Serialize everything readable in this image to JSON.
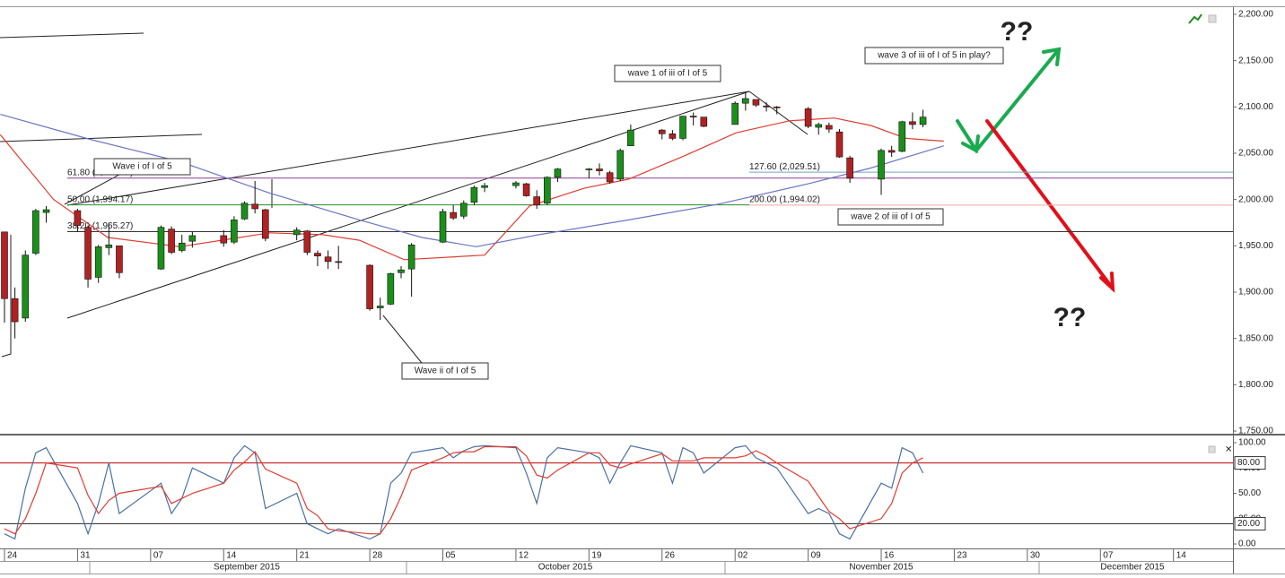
{
  "chart_data": [
    {
      "type": "candlestick",
      "x": [
        0,
        1,
        2,
        3,
        4,
        7,
        8,
        9,
        10,
        11,
        15,
        16,
        17,
        18,
        21,
        22,
        23,
        24,
        25,
        28,
        29,
        30,
        31,
        32,
        35,
        36,
        37,
        38,
        39,
        42,
        43,
        44,
        45,
        46,
        49,
        50,
        51,
        52,
        53,
        56,
        57,
        58,
        59,
        60,
        63,
        64,
        65,
        66,
        67,
        70,
        71,
        72,
        73,
        74,
        77,
        78,
        79,
        80,
        81,
        84,
        85,
        86,
        87,
        88
      ],
      "open": [
        1965,
        1893,
        1872,
        1942,
        1986,
        1988,
        1970,
        1916,
        1948,
        1950,
        1925,
        1968,
        1945,
        1955,
        1961,
        1954,
        1979,
        1995,
        1989,
        1962,
        1966,
        1942,
        1938,
        1933,
        1929,
        1883,
        1887,
        1921,
        1925,
        1954,
        1986,
        1982,
        1997,
        2013,
        2015,
        2017,
        2003,
        1996,
        2024,
        2032,
        2033,
        2029,
        2022,
        2058,
        2075,
        2071,
        2066,
        2090,
        2089,
        2081,
        2104,
        2108,
        2101,
        2100,
        2098,
        2078,
        2080,
        2073,
        2045,
        2022,
        2053,
        2052,
        2084,
        2081
      ],
      "high": [
        1965,
        1905,
        1945,
        1990,
        1993,
        1990,
        1972,
        1951,
        1975,
        1950,
        1972,
        1971,
        1962,
        1965,
        1967,
        1982,
        1998,
        2020,
        1990,
        1970,
        1967,
        1945,
        1945,
        1950,
        1930,
        1894,
        1921,
        1928,
        1953,
        1990,
        1994,
        1999,
        2015,
        2018,
        2020,
        2018,
        2010,
        2025,
        2034,
        2034,
        2039,
        2031,
        2055,
        2081,
        2076,
        2075,
        2090,
        2094,
        2086,
        2106,
        2116,
        2107,
        2105,
        2101,
        2100,
        2083,
        2083,
        2076,
        2047,
        2055,
        2058,
        2085,
        2094,
        2097
      ],
      "low": [
        1867,
        1850,
        1868,
        1940,
        1975,
        1965,
        1905,
        1910,
        1940,
        1915,
        1924,
        1941,
        1943,
        1948,
        1949,
        1952,
        1978,
        1985,
        1955,
        1956,
        1940,
        1928,
        1925,
        1925,
        1880,
        1870,
        1886,
        1915,
        1895,
        1953,
        1978,
        1979,
        1994,
        2008,
        2012,
        2003,
        1990,
        1994,
        2019,
        2023,
        2026,
        2017,
        2020,
        2058,
        2065,
        2064,
        2064,
        2080,
        2078,
        2081,
        2096,
        2100,
        2095,
        2092,
        2077,
        2070,
        2072,
        2045,
        2018,
        2005,
        2046,
        2051,
        2076,
        2078
      ],
      "close": [
        1893,
        1868,
        1940,
        1988,
        1989,
        1972,
        1914,
        1949,
        1951,
        1921,
        1970,
        1943,
        1953,
        1961,
        1953,
        1978,
        1996,
        1990,
        1958,
        1967,
        1943,
        1939,
        1933,
        1932,
        1882,
        1885,
        1920,
        1924,
        1951,
        1987,
        1980,
        1996,
        2013,
        2015,
        2018,
        2004,
        1994,
        2024,
        2033,
        2033,
        2031,
        2019,
        2053,
        2075,
        2071,
        2066,
        2090,
        2089,
        2079,
        2104,
        2109,
        2102,
        2100,
        2099,
        2079,
        2081,
        2076,
        2046,
        2023,
        2053,
        2051,
        2084,
        2081,
        2089
      ],
      "up_color": "#1a8f1a",
      "down_color": "#b22222",
      "series": [
        {
          "color": "#e03c31",
          "x": [
            -0.4,
            4.7,
            9.9,
            16.8,
            25.4,
            30.5,
            34,
            38.3,
            46,
            50.3,
            55.5,
            59.8,
            64.9,
            70.1,
            75.2,
            79.5,
            83,
            86.4,
            90
          ],
          "values": [
            2070,
            2000,
            1959,
            1949,
            1964,
            1962,
            1956,
            1935,
            1940,
            1993,
            2012,
            2022,
            2046,
            2072,
            2085,
            2088,
            2080,
            2066,
            2063
          ]
        },
        {
          "color": "#6b74c4",
          "x": [
            -0.4,
            8.2,
            16.8,
            25.4,
            34,
            40,
            45.2,
            51.2,
            59.8,
            68.4,
            77,
            83,
            90
          ],
          "values": [
            2092,
            2065,
            2041,
            2007,
            1978,
            1959,
            1949,
            1962,
            1978,
            1995,
            2017,
            2034,
            2058
          ]
        }
      ],
      "levels": [
        {
          "value": 2023.08,
          "label": "61.80 (2,023.08)",
          "color": "#8b3a96"
        },
        {
          "value": 1994.17,
          "label": "50.00 (1,994.17)",
          "color": "#2a8a2a"
        },
        {
          "value": 1965.27,
          "label": "38.20 (1,965.27)",
          "color": "#333333"
        },
        {
          "value": 2029.51,
          "label": "127.60 (2,029.51)",
          "color": "#6fa8c0"
        },
        {
          "value": 1994.02,
          "label": "200.00 (1,994.02)",
          "color": "#f0a8a8"
        }
      ],
      "annotations": [
        "Wave i of I of 5",
        "wave 1 of iii of I of 5",
        "wave 3 of iii of I of 5 in play?",
        "wave 2 of iii of I of 5",
        "Wave ii of I of 5"
      ],
      "question_marks": [
        "??",
        "??"
      ],
      "xlim": [
        -0.43,
        117.7
      ],
      "xticks": [
        {
          "value": 0,
          "label": "24"
        },
        {
          "value": 7,
          "label": "31"
        },
        {
          "value": 14,
          "label": "07"
        },
        {
          "value": 21,
          "label": "14"
        },
        {
          "value": 28,
          "label": "21"
        },
        {
          "value": 35,
          "label": "28"
        },
        {
          "value": 42,
          "label": "05"
        },
        {
          "value": 49,
          "label": "12"
        },
        {
          "value": 56,
          "label": "19"
        },
        {
          "value": 63,
          "label": "26"
        },
        {
          "value": 70,
          "label": "02"
        },
        {
          "value": 77,
          "label": "09"
        },
        {
          "value": 84,
          "label": "16"
        },
        {
          "value": 91,
          "label": "23"
        },
        {
          "value": 98,
          "label": "30"
        },
        {
          "value": 105,
          "label": "07"
        },
        {
          "value": 112,
          "label": "14"
        }
      ],
      "month_labels": [
        "September 2015",
        "October 2015",
        "November 2015",
        "December 2015"
      ],
      "ylim": [
        1747.1,
        2207.7
      ],
      "yticks": [
        {
          "value": 1750,
          "label": "1,750.00"
        },
        {
          "value": 1800,
          "label": "1,800.00"
        },
        {
          "value": 1850,
          "label": "1,850.00"
        },
        {
          "value": 1900,
          "label": "1,900.00"
        },
        {
          "value": 1950,
          "label": "1,950.00"
        },
        {
          "value": 2000,
          "label": "2,000.00"
        },
        {
          "value": 2050,
          "label": "2,050.00"
        },
        {
          "value": 2100,
          "label": "2,100.00"
        },
        {
          "value": 2150,
          "label": "2,150.00"
        },
        {
          "value": 2200,
          "label": "2,200.00"
        }
      ]
    },
    {
      "type": "line",
      "x": [
        0,
        1,
        2,
        3,
        4,
        7,
        8,
        9,
        10,
        11,
        15,
        16,
        17,
        18,
        21,
        22,
        23,
        24,
        25,
        28,
        29,
        30,
        31,
        32,
        35,
        36,
        37,
        38,
        39,
        42,
        43,
        44,
        45,
        46,
        49,
        50,
        51,
        52,
        53,
        56,
        57,
        58,
        59,
        60,
        63,
        64,
        65,
        66,
        67,
        70,
        71,
        72,
        73,
        74,
        77,
        78,
        79,
        80,
        81,
        84,
        85,
        86,
        87,
        88
      ],
      "series": [
        {
          "color": "#4a6fa5",
          "values": [
            10,
            5,
            55,
            90,
            95,
            40,
            10,
            40,
            80,
            30,
            60,
            30,
            45,
            75,
            60,
            85,
            97,
            90,
            35,
            50,
            20,
            15,
            10,
            15,
            5,
            10,
            60,
            70,
            90,
            95,
            85,
            92,
            96,
            97,
            95,
            70,
            40,
            85,
            95,
            90,
            85,
            60,
            80,
            97,
            90,
            60,
            95,
            90,
            70,
            95,
            97,
            85,
            80,
            75,
            30,
            35,
            30,
            10,
            5,
            60,
            55,
            95,
            90,
            70
          ]
        },
        {
          "color": "#e03c31",
          "values": [
            15,
            10,
            25,
            50,
            80,
            75,
            48,
            30,
            43,
            50,
            57,
            40,
            45,
            50,
            60,
            73,
            81,
            91,
            74,
            60,
            35,
            28,
            15,
            13,
            10,
            10,
            25,
            47,
            73,
            85,
            90,
            91,
            91,
            96,
            96,
            87,
            68,
            65,
            73,
            90,
            90,
            78,
            75,
            79,
            89,
            82,
            82,
            82,
            85,
            85,
            87,
            92,
            87,
            80,
            62,
            47,
            32,
            25,
            15,
            25,
            40,
            70,
            80,
            85
          ]
        }
      ],
      "levels": [
        {
          "value": 80,
          "label": "80.00",
          "color": "#c00000"
        },
        {
          "value": 20,
          "label": "20.00",
          "color": "#222222"
        }
      ],
      "xlim": [
        -0.43,
        117.7
      ],
      "ylim": [
        -4.4,
        104.4
      ],
      "yticks": [
        {
          "value": 0,
          "label": "0.00"
        },
        {
          "value": 25,
          "label": "25.00"
        },
        {
          "value": 50,
          "label": "50.00"
        },
        {
          "value": 75,
          "label": "75.00"
        },
        {
          "value": 100,
          "label": "100.00"
        }
      ]
    }
  ]
}
